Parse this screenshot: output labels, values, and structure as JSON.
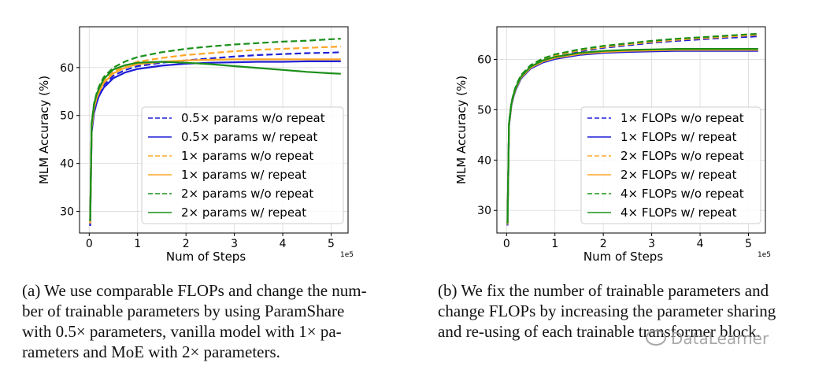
{
  "chart_data": [
    {
      "type": "line",
      "xlabel": "Num of Steps",
      "ylabel": "MLM Accuracy (%)",
      "x_scale_label": "1e5",
      "xlim": [
        -0.2,
        5.35
      ],
      "ylim": [
        25.5,
        68.5
      ],
      "xticks": [
        0,
        1,
        2,
        3,
        4,
        5
      ],
      "yticks": [
        30,
        40,
        50,
        60
      ],
      "grid": true,
      "legend_position": "right-center",
      "series": [
        {
          "name": "0.5× params w/o repeat",
          "color": "#1f1fd6",
          "dash": true,
          "x": [
            0.02,
            0.05,
            0.1,
            0.15,
            0.2,
            0.3,
            0.5,
            0.75,
            1.0,
            1.5,
            2.0,
            2.5,
            3.0,
            3.5,
            4.0,
            4.5,
            5.0,
            5.2
          ],
          "y": [
            27.0,
            47.0,
            51.0,
            53.0,
            54.5,
            56.3,
            58.3,
            59.5,
            60.3,
            61.0,
            61.5,
            61.9,
            62.3,
            62.6,
            62.8,
            63.0,
            63.1,
            63.2
          ]
        },
        {
          "name": "0.5× params w/ repeat",
          "color": "#1f1fd6",
          "dash": false,
          "x": [
            0.02,
            0.05,
            0.1,
            0.15,
            0.2,
            0.3,
            0.5,
            0.75,
            1.0,
            1.5,
            2.0,
            2.5,
            3.0,
            3.5,
            4.0,
            4.5,
            5.0,
            5.2
          ],
          "y": [
            27.0,
            46.5,
            50.5,
            52.5,
            54.0,
            55.8,
            57.8,
            59.0,
            59.7,
            60.4,
            60.8,
            61.0,
            61.1,
            61.2,
            61.2,
            61.3,
            61.3,
            61.3
          ]
        },
        {
          "name": "1× params w/o repeat",
          "color": "#ffa726",
          "dash": true,
          "x": [
            0.02,
            0.05,
            0.1,
            0.15,
            0.2,
            0.3,
            0.5,
            0.75,
            1.0,
            1.5,
            2.0,
            2.5,
            3.0,
            3.5,
            4.0,
            4.5,
            5.0,
            5.2
          ],
          "y": [
            27.5,
            47.8,
            51.8,
            53.8,
            55.2,
            57.1,
            59.1,
            60.4,
            61.2,
            62.0,
            62.6,
            63.0,
            63.4,
            63.7,
            63.9,
            64.1,
            64.3,
            64.4
          ]
        },
        {
          "name": "1× params w/ repeat",
          "color": "#ffa726",
          "dash": false,
          "x": [
            0.02,
            0.05,
            0.1,
            0.15,
            0.2,
            0.3,
            0.5,
            0.75,
            1.0,
            1.5,
            2.0,
            2.5,
            3.0,
            3.5,
            4.0,
            4.5,
            5.0,
            5.2
          ],
          "y": [
            27.5,
            47.5,
            51.5,
            53.5,
            54.8,
            56.8,
            58.8,
            60.0,
            60.7,
            61.2,
            61.5,
            61.6,
            61.7,
            61.7,
            61.7,
            61.7,
            61.7,
            61.7
          ]
        },
        {
          "name": "2× params w/o repeat",
          "color": "#1a8f1a",
          "dash": true,
          "x": [
            0.02,
            0.05,
            0.1,
            0.15,
            0.2,
            0.3,
            0.5,
            0.75,
            1.0,
            1.5,
            2.0,
            2.5,
            3.0,
            3.5,
            4.0,
            4.5,
            5.0,
            5.2
          ],
          "y": [
            28.0,
            48.5,
            52.5,
            54.5,
            56.0,
            58.0,
            60.0,
            61.3,
            62.2,
            63.2,
            63.9,
            64.4,
            64.8,
            65.1,
            65.4,
            65.6,
            65.9,
            66.0
          ]
        },
        {
          "name": "2× params w/ repeat",
          "color": "#1a8f1a",
          "dash": false,
          "x": [
            0.02,
            0.05,
            0.1,
            0.15,
            0.2,
            0.3,
            0.5,
            0.75,
            1.0,
            1.5,
            2.0,
            2.5,
            3.0,
            3.5,
            4.0,
            4.5,
            5.0,
            5.2
          ],
          "y": [
            28.0,
            48.3,
            52.3,
            54.3,
            55.6,
            57.6,
            59.6,
            60.5,
            61.0,
            61.2,
            61.0,
            60.7,
            60.3,
            59.9,
            59.5,
            59.1,
            58.8,
            58.7
          ]
        }
      ]
    },
    {
      "type": "line",
      "xlabel": "Num of Steps",
      "ylabel": "MLM Accuracy (%)",
      "x_scale_label": "1e5",
      "xlim": [
        -0.2,
        5.35
      ],
      "ylim": [
        25.5,
        66.5
      ],
      "xticks": [
        0,
        1,
        2,
        3,
        4,
        5
      ],
      "yticks": [
        30,
        40,
        50,
        60
      ],
      "grid": true,
      "legend_position": "bottom-right",
      "series": [
        {
          "name": "1× FLOPs w/o repeat",
          "color": "#1f1fd6",
          "dash": true,
          "x": [
            0.02,
            0.05,
            0.1,
            0.15,
            0.2,
            0.3,
            0.5,
            0.75,
            1.0,
            1.5,
            2.0,
            2.5,
            3.0,
            3.5,
            4.0,
            4.5,
            5.0,
            5.2
          ],
          "y": [
            27.0,
            47.0,
            51.0,
            53.0,
            54.5,
            56.5,
            58.5,
            59.8,
            60.6,
            61.6,
            62.3,
            62.8,
            63.3,
            63.7,
            64.0,
            64.3,
            64.5,
            64.6
          ]
        },
        {
          "name": "1× FLOPs w/ repeat",
          "color": "#1f1fd6",
          "dash": false,
          "x": [
            0.02,
            0.05,
            0.1,
            0.15,
            0.2,
            0.3,
            0.5,
            0.75,
            1.0,
            1.5,
            2.0,
            2.5,
            3.0,
            3.5,
            4.0,
            4.5,
            5.0,
            5.2
          ],
          "y": [
            27.0,
            46.8,
            50.8,
            52.8,
            54.2,
            56.2,
            58.2,
            59.4,
            60.1,
            60.9,
            61.3,
            61.5,
            61.6,
            61.7,
            61.7,
            61.7,
            61.7,
            61.7
          ]
        },
        {
          "name": "2× FLOPs w/o repeat",
          "color": "#ffa726",
          "dash": true,
          "x": [
            0.02,
            0.05,
            0.1,
            0.15,
            0.2,
            0.3,
            0.5,
            0.75,
            1.0,
            1.5,
            2.0,
            2.5,
            3.0,
            3.5,
            4.0,
            4.5,
            5.0,
            5.2
          ],
          "y": [
            27.2,
            47.2,
            51.2,
            53.2,
            54.7,
            56.7,
            58.7,
            60.0,
            60.8,
            61.8,
            62.5,
            63.0,
            63.5,
            63.9,
            64.2,
            64.5,
            64.8,
            64.9
          ]
        },
        {
          "name": "2× FLOPs w/ repeat",
          "color": "#ffa726",
          "dash": false,
          "x": [
            0.02,
            0.05,
            0.1,
            0.15,
            0.2,
            0.3,
            0.5,
            0.75,
            1.0,
            1.5,
            2.0,
            2.5,
            3.0,
            3.5,
            4.0,
            4.5,
            5.0,
            5.2
          ],
          "y": [
            27.2,
            47.0,
            51.0,
            53.0,
            54.4,
            56.4,
            58.4,
            59.6,
            60.3,
            61.1,
            61.5,
            61.7,
            61.8,
            61.9,
            61.9,
            61.9,
            61.9,
            61.9
          ]
        },
        {
          "name": "4× FLOPs w/o repeat",
          "color": "#1a8f1a",
          "dash": true,
          "x": [
            0.02,
            0.05,
            0.1,
            0.15,
            0.2,
            0.3,
            0.5,
            0.75,
            1.0,
            1.5,
            2.0,
            2.5,
            3.0,
            3.5,
            4.0,
            4.5,
            5.0,
            5.2
          ],
          "y": [
            27.4,
            47.4,
            51.4,
            53.4,
            54.9,
            56.9,
            58.9,
            60.2,
            61.0,
            62.0,
            62.7,
            63.2,
            63.7,
            64.1,
            64.4,
            64.7,
            65.0,
            65.1
          ]
        },
        {
          "name": "4× FLOPs w/ repeat",
          "color": "#1a8f1a",
          "dash": false,
          "x": [
            0.02,
            0.05,
            0.1,
            0.15,
            0.2,
            0.3,
            0.5,
            0.75,
            1.0,
            1.5,
            2.0,
            2.5,
            3.0,
            3.5,
            4.0,
            4.5,
            5.0,
            5.2
          ],
          "y": [
            27.4,
            47.2,
            51.2,
            53.2,
            54.6,
            56.6,
            58.6,
            59.8,
            60.5,
            61.3,
            61.7,
            61.9,
            62.0,
            62.1,
            62.1,
            62.1,
            62.1,
            62.1
          ]
        }
      ]
    }
  ],
  "captions": {
    "a": [
      "(a) We use comparable FLOPs and change the num-",
      "ber of trainable parameters by using ParamShare",
      "with 0.5× parameters, vanilla model with 1× pa-",
      "rameters and MoE with 2× parameters."
    ],
    "b": [
      "(b) We fix the number of trainable parameters and",
      "change FLOPs by increasing the parameter sharing",
      "and re-using of each trainable transformer block."
    ]
  },
  "watermark": "DataLearner"
}
